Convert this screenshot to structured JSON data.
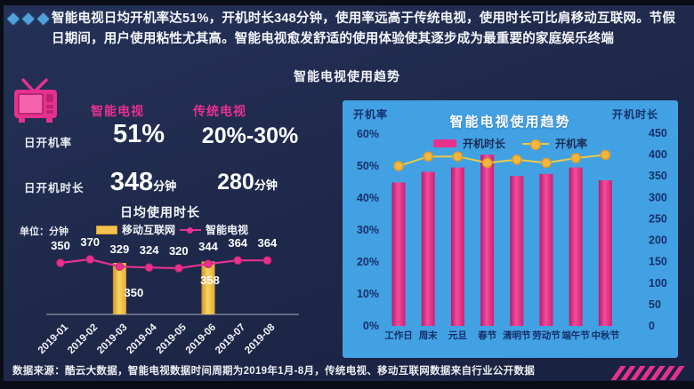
{
  "slide": {
    "headline": "智能电视日均开机率达51%，开机时长348分钟，使用率远高于传统电视，使用时长可比肩移动互联网。节假日期间，用户使用粘性尤其高。智能电视愈发舒适的使用体验使其逐步成为最重要的家庭娱乐终端",
    "section_title": "智能电视使用趋势",
    "footer": "数据来源：酷云大数据，智能电视数据时间周期为2019年1月-8月，传统电视、移动互联网数据来自行业公开数据"
  },
  "comparison": {
    "columns": [
      "智能电视",
      "传统电视"
    ],
    "rows": [
      {
        "label": "日开机率",
        "values": [
          {
            "num": "51%",
            "unit": ""
          },
          {
            "num": "20%-30%",
            "unit": ""
          }
        ]
      },
      {
        "label": "日开机时长",
        "values": [
          {
            "num": "348",
            "unit": "分钟"
          },
          {
            "num": "280",
            "unit": "分钟"
          }
        ]
      }
    ]
  },
  "colors": {
    "background": "#1E2849",
    "accent_pink": "#E7318F",
    "accent_yellow": "#F2C24E",
    "panel_blue": "#42A1E3",
    "panel_text_navy": "#16316B",
    "diamond_blue": "#4FA0DB"
  },
  "chart_data": [
    {
      "type": "line",
      "title": "日均使用时长",
      "unit_label": "单位：分钟",
      "categories": [
        "2019-01",
        "2019-02",
        "2019-03",
        "2019-04",
        "2019-05",
        "2019-06",
        "2019-07",
        "2019-08"
      ],
      "series": [
        {
          "name": "移动互联网",
          "type": "bar",
          "color": "#F2C24E",
          "values": [
            null,
            null,
            350,
            null,
            null,
            358,
            null,
            null
          ]
        },
        {
          "name": "智能电视",
          "type": "line",
          "color": "#E7318F",
          "values": [
            350,
            370,
            329,
            324,
            320,
            344,
            364,
            364
          ]
        }
      ],
      "legend_position": "top",
      "grid": false
    },
    {
      "type": "bar",
      "title": "智能电视使用趋势",
      "categories": [
        "工作日",
        "周末",
        "元旦",
        "春节",
        "清明节",
        "劳动节",
        "端午节",
        "中秋节"
      ],
      "series": [
        {
          "name": "开机时长",
          "type": "bar",
          "axis": "right",
          "color": "#E7318F",
          "values": [
            335,
            360,
            370,
            400,
            350,
            355,
            370,
            340
          ]
        },
        {
          "name": "开机率",
          "type": "line",
          "axis": "left",
          "color": "#F2C24E",
          "values": [
            50,
            53,
            53,
            51,
            52,
            51,
            52.5,
            53.5
          ]
        }
      ],
      "left_axis": {
        "label": "开机率",
        "ticks": [
          "60%",
          "50%",
          "40%",
          "30%",
          "20%",
          "10%",
          "0%"
        ],
        "range": [
          0,
          60
        ]
      },
      "right_axis": {
        "label": "开机时长",
        "ticks": [
          450,
          400,
          350,
          300,
          250,
          200,
          150,
          100,
          50,
          0
        ],
        "range": [
          0,
          450
        ]
      },
      "legend_position": "top",
      "grid": false
    }
  ]
}
